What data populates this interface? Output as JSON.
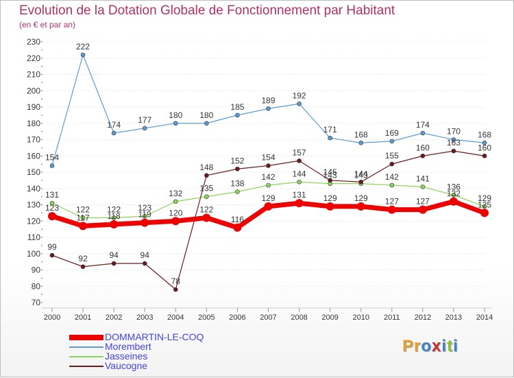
{
  "title": "Evolution de la Dotation Globale de Fonctionnement par Habitant",
  "subtitle": "(en € et par an)",
  "logo": {
    "text": "Proxiti",
    "letters": [
      {
        "ch": "P",
        "color": "#e8a02a"
      },
      {
        "ch": "r",
        "color": "#e8a02a"
      },
      {
        "ch": "o",
        "color": "#3a86c8"
      },
      {
        "ch": "x",
        "color": "#cc2a2a"
      },
      {
        "ch": "i",
        "color": "#3a86c8"
      },
      {
        "ch": "t",
        "color": "#8cbf3a"
      },
      {
        "ch": "i",
        "color": "#3a86c8"
      }
    ]
  },
  "chart_data": {
    "type": "line",
    "title": "Evolution de la Dotation Globale de Fonctionnement par Habitant",
    "subtitle": "(en € et par an)",
    "xlabel": "",
    "ylabel": "",
    "categories": [
      "2000",
      "2001",
      "2002",
      "2003",
      "2004",
      "2005",
      "2006",
      "2007",
      "2008",
      "2009",
      "2010",
      "2011",
      "2012",
      "2013",
      "2014"
    ],
    "ylim": [
      70,
      230
    ],
    "ytick_step": 10,
    "grid": "horizontal dotted",
    "legend_position": "bottom-left",
    "series": [
      {
        "name": "Morembert",
        "color": "#5b9bd5",
        "values": [
          154,
          222,
          174,
          177,
          180,
          180,
          185,
          189,
          192,
          171,
          168,
          169,
          174,
          170,
          168
        ]
      },
      {
        "name": "Jasseines",
        "color": "#8ed45a",
        "values": [
          131,
          122,
          122,
          123,
          132,
          135,
          138,
          142,
          144,
          143,
          143,
          142,
          141,
          136,
          129
        ]
      },
      {
        "name": "Vaucogne",
        "color": "#6b1a1a",
        "values": [
          99,
          92,
          94,
          94,
          78,
          148,
          152,
          154,
          157,
          145,
          144,
          155,
          160,
          163,
          160
        ]
      },
      {
        "name": "DOMMARTIN-LE-COQ",
        "color": "#ee0000",
        "values": [
          123,
          117,
          118,
          119,
          120,
          122,
          116,
          129,
          131,
          129,
          129,
          127,
          127,
          132,
          125
        ]
      }
    ],
    "data_labels": {
      "Morembert": [
        "154",
        "222",
        "174",
        "177",
        "180",
        "180",
        "185",
        "189",
        "192",
        "171",
        "168",
        "169",
        "174",
        "170",
        "168"
      ],
      "Jasseines": [
        "131",
        "122",
        "122",
        "123",
        "132",
        "135",
        "138",
        "142",
        "144",
        "143",
        "143",
        "142",
        "141",
        "136",
        "129"
      ],
      "Vaucogne": [
        "99",
        "92",
        "94",
        "94",
        "78",
        "148",
        "152",
        "154",
        "157",
        "145",
        "144",
        "155",
        "160",
        "163",
        "160"
      ],
      "DOMMARTIN-LE-COQ": [
        "123",
        "117",
        "118",
        "119",
        "120",
        "122",
        "116",
        "129",
        "131",
        "129",
        "129",
        "127",
        "127",
        "132",
        "125"
      ]
    },
    "legend_order": [
      "DOMMARTIN-LE-COQ",
      "Morembert",
      "Jasseines",
      "Vaucogne"
    ]
  }
}
